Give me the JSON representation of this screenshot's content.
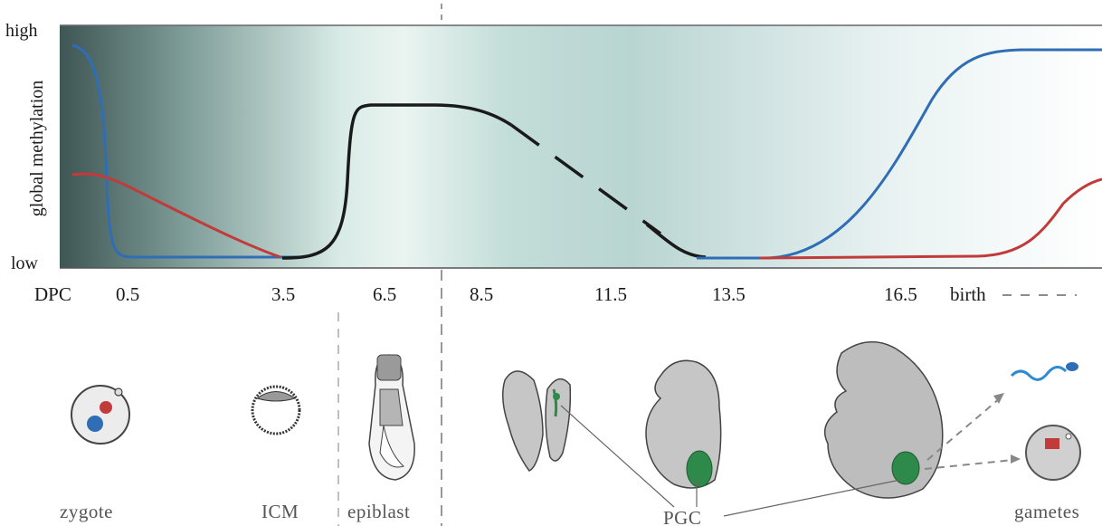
{
  "y_axis": {
    "title": "global methylation",
    "high_label": "high",
    "low_label": "low"
  },
  "x_axis": {
    "prefix": "DPC",
    "ticks": [
      "0.5",
      "3.5",
      "6.5",
      "8.5",
      "11.5",
      "13.5",
      "16.5",
      "birth"
    ]
  },
  "stages": {
    "zygote": "zygote",
    "icm": "ICM",
    "epiblast": "epiblast",
    "pgc": "PGC",
    "gametes": "gametes"
  },
  "colors": {
    "paternal": "#2f6db5",
    "maternal": "#c23b3b",
    "embryonic": "#1a1a1a",
    "background_dark": "#3f5a58",
    "background_light": "#eef6f5",
    "pgc_green": "#2e8a4a",
    "embryo_gray": "#bdbdbd"
  },
  "series": [
    {
      "color": "blue",
      "x": [
        0.5,
        1.5,
        3.5,
        12.5,
        13.5,
        16.5,
        18.5
      ],
      "y": [
        0.92,
        0.03,
        0.02,
        0.02,
        0.02,
        0.9,
        0.92
      ]
    },
    {
      "color": "red",
      "x": [
        0.5,
        3.5,
        12.5,
        13.5,
        16.5,
        18.5
      ],
      "y": [
        0.38,
        0.02,
        0.02,
        0.03,
        0.04,
        0.36
      ]
    },
    {
      "color": "black",
      "x": [
        3.5,
        5.0,
        6.5,
        8.5,
        12.5
      ],
      "y": [
        0.02,
        0.72,
        0.73,
        0.72,
        0.02
      ]
    }
  ]
}
